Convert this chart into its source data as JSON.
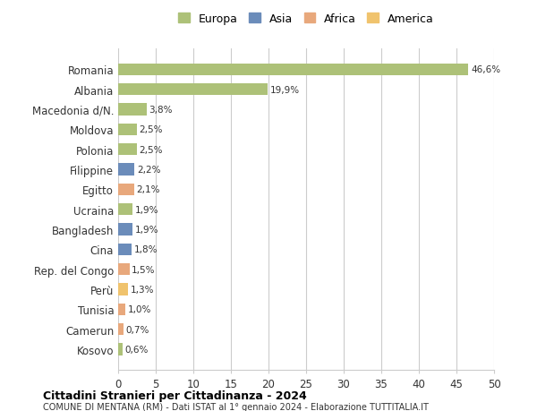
{
  "categories": [
    "Kosovo",
    "Camerun",
    "Tunisia",
    "Perù",
    "Rep. del Congo",
    "Cina",
    "Bangladesh",
    "Ucraina",
    "Egitto",
    "Filippine",
    "Polonia",
    "Moldova",
    "Macedonia d/N.",
    "Albania",
    "Romania"
  ],
  "values": [
    0.6,
    0.7,
    1.0,
    1.3,
    1.5,
    1.8,
    1.9,
    1.9,
    2.1,
    2.2,
    2.5,
    2.5,
    3.8,
    19.9,
    46.6
  ],
  "labels": [
    "0,6%",
    "0,7%",
    "1,0%",
    "1,3%",
    "1,5%",
    "1,8%",
    "1,9%",
    "1,9%",
    "2,1%",
    "2,2%",
    "2,5%",
    "2,5%",
    "3,8%",
    "19,9%",
    "46,6%"
  ],
  "colors": [
    "#adc178",
    "#e8a87c",
    "#e8a87c",
    "#f0c36d",
    "#e8a87c",
    "#6b8cba",
    "#6b8cba",
    "#adc178",
    "#e8a87c",
    "#6b8cba",
    "#adc178",
    "#adc178",
    "#adc178",
    "#adc178",
    "#adc178"
  ],
  "legend": [
    {
      "label": "Europa",
      "color": "#adc178"
    },
    {
      "label": "Asia",
      "color": "#6b8cba"
    },
    {
      "label": "Africa",
      "color": "#e8a87c"
    },
    {
      "label": "America",
      "color": "#f0c36d"
    }
  ],
  "title1": "Cittadini Stranieri per Cittadinanza - 2024",
  "title2": "COMUNE DI MENTANA (RM) - Dati ISTAT al 1° gennaio 2024 - Elaborazione TUTTITALIA.IT",
  "xlim": [
    0,
    50
  ],
  "xticks": [
    0,
    5,
    10,
    15,
    20,
    25,
    30,
    35,
    40,
    45,
    50
  ],
  "bg_color": "#ffffff",
  "grid_color": "#cccccc"
}
